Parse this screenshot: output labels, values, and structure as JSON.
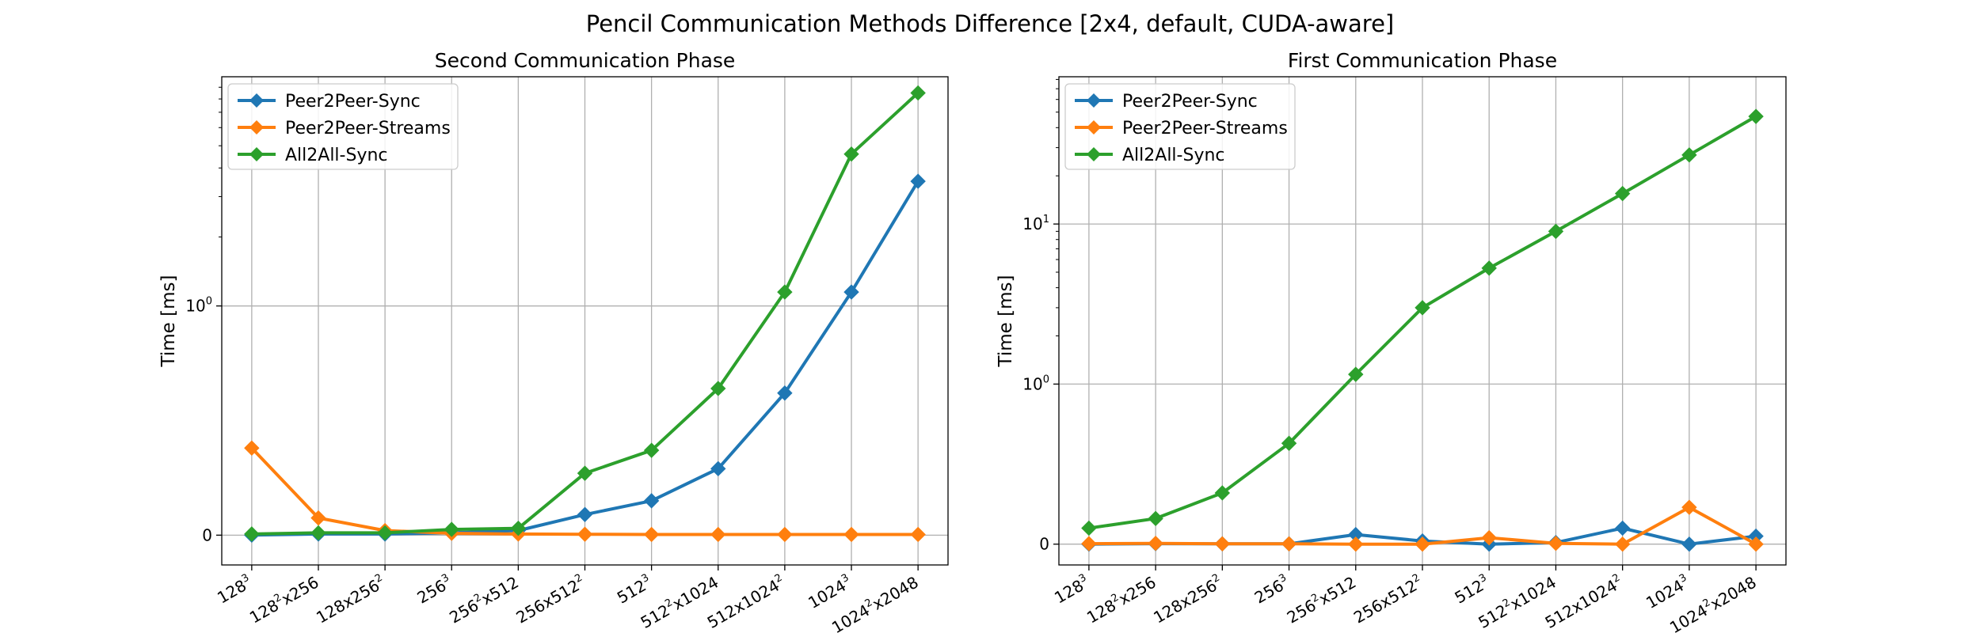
{
  "figure": {
    "title": "Pencil Communication Methods Difference [2x4, default, CUDA-aware]"
  },
  "colors": {
    "Peer2Peer-Sync": "#1f77b4",
    "Peer2Peer-Streams": "#ff7f0e",
    "All2All-Sync": "#2ca02c"
  },
  "chart_data": [
    {
      "type": "line",
      "title": "Second Communication Phase",
      "xlabel": "",
      "ylabel": "Time [ms]",
      "yscale": "symlog",
      "y_ticks": [
        {
          "value": 0,
          "base": "0",
          "exp": ""
        },
        {
          "value": 1,
          "base": "10",
          "exp": "0"
        }
      ],
      "grid": true,
      "legend": "upper-left",
      "categories": [
        {
          "base": "128",
          "exp": "3",
          "suffix": ""
        },
        {
          "base": "128",
          "exp": "2",
          "suffix": "x256"
        },
        {
          "base": "128x256",
          "exp": "2",
          "suffix": ""
        },
        {
          "base": "256",
          "exp": "3",
          "suffix": ""
        },
        {
          "base": "256",
          "exp": "2",
          "suffix": "x512"
        },
        {
          "base": "256x512",
          "exp": "2",
          "suffix": ""
        },
        {
          "base": "512",
          "exp": "3",
          "suffix": ""
        },
        {
          "base": "512",
          "exp": "2",
          "suffix": "x1024"
        },
        {
          "base": "512x1024",
          "exp": "2",
          "suffix": ""
        },
        {
          "base": "1024",
          "exp": "3",
          "suffix": ""
        },
        {
          "base": "1024",
          "exp": "2",
          "suffix": "x2048"
        }
      ],
      "series": [
        {
          "name": "Peer2Peer-Sync",
          "values": [
            0.0,
            0.005,
            0.005,
            0.01,
            0.02,
            0.09,
            0.15,
            0.29,
            0.62,
            1.15,
            3.5
          ]
        },
        {
          "name": "Peer2Peer-Streams",
          "values": [
            0.38,
            0.075,
            0.02,
            0.008,
            0.005,
            0.004,
            0.003,
            0.003,
            0.003,
            0.003,
            0.003
          ]
        },
        {
          "name": "All2All-Sync",
          "values": [
            0.005,
            0.01,
            0.01,
            0.025,
            0.03,
            0.27,
            0.37,
            0.64,
            1.15,
            4.6,
            8.5
          ]
        }
      ]
    },
    {
      "type": "line",
      "title": "First Communication Phase",
      "xlabel": "",
      "ylabel": "Time [ms]",
      "yscale": "symlog",
      "y_ticks": [
        {
          "value": 0,
          "base": "0",
          "exp": ""
        },
        {
          "value": 1,
          "base": "10",
          "exp": "0"
        },
        {
          "value": 10,
          "base": "10",
          "exp": "1"
        }
      ],
      "grid": true,
      "legend": "upper-left",
      "categories": [
        {
          "base": "128",
          "exp": "3",
          "suffix": ""
        },
        {
          "base": "128",
          "exp": "2",
          "suffix": "x256"
        },
        {
          "base": "128x256",
          "exp": "2",
          "suffix": ""
        },
        {
          "base": "256",
          "exp": "3",
          "suffix": ""
        },
        {
          "base": "256",
          "exp": "2",
          "suffix": "x512"
        },
        {
          "base": "256x512",
          "exp": "2",
          "suffix": ""
        },
        {
          "base": "512",
          "exp": "3",
          "suffix": ""
        },
        {
          "base": "512",
          "exp": "2",
          "suffix": "x1024"
        },
        {
          "base": "512x1024",
          "exp": "2",
          "suffix": ""
        },
        {
          "base": "1024",
          "exp": "3",
          "suffix": ""
        },
        {
          "base": "1024",
          "exp": "2",
          "suffix": "x2048"
        }
      ],
      "series": [
        {
          "name": "Peer2Peer-Sync",
          "values": [
            0.0,
            0.003,
            0.002,
            0.002,
            0.06,
            0.02,
            0.0,
            0.01,
            0.1,
            0.0,
            0.05
          ]
        },
        {
          "name": "Peer2Peer-Streams",
          "values": [
            0.003,
            0.005,
            0.002,
            0.002,
            0.0,
            0.0,
            0.04,
            0.005,
            0.0,
            0.23,
            0.0
          ]
        },
        {
          "name": "All2All-Sync",
          "values": [
            0.1,
            0.16,
            0.32,
            0.63,
            1.15,
            3.0,
            5.3,
            9.0,
            15.5,
            27.0,
            47.0
          ]
        }
      ]
    }
  ]
}
